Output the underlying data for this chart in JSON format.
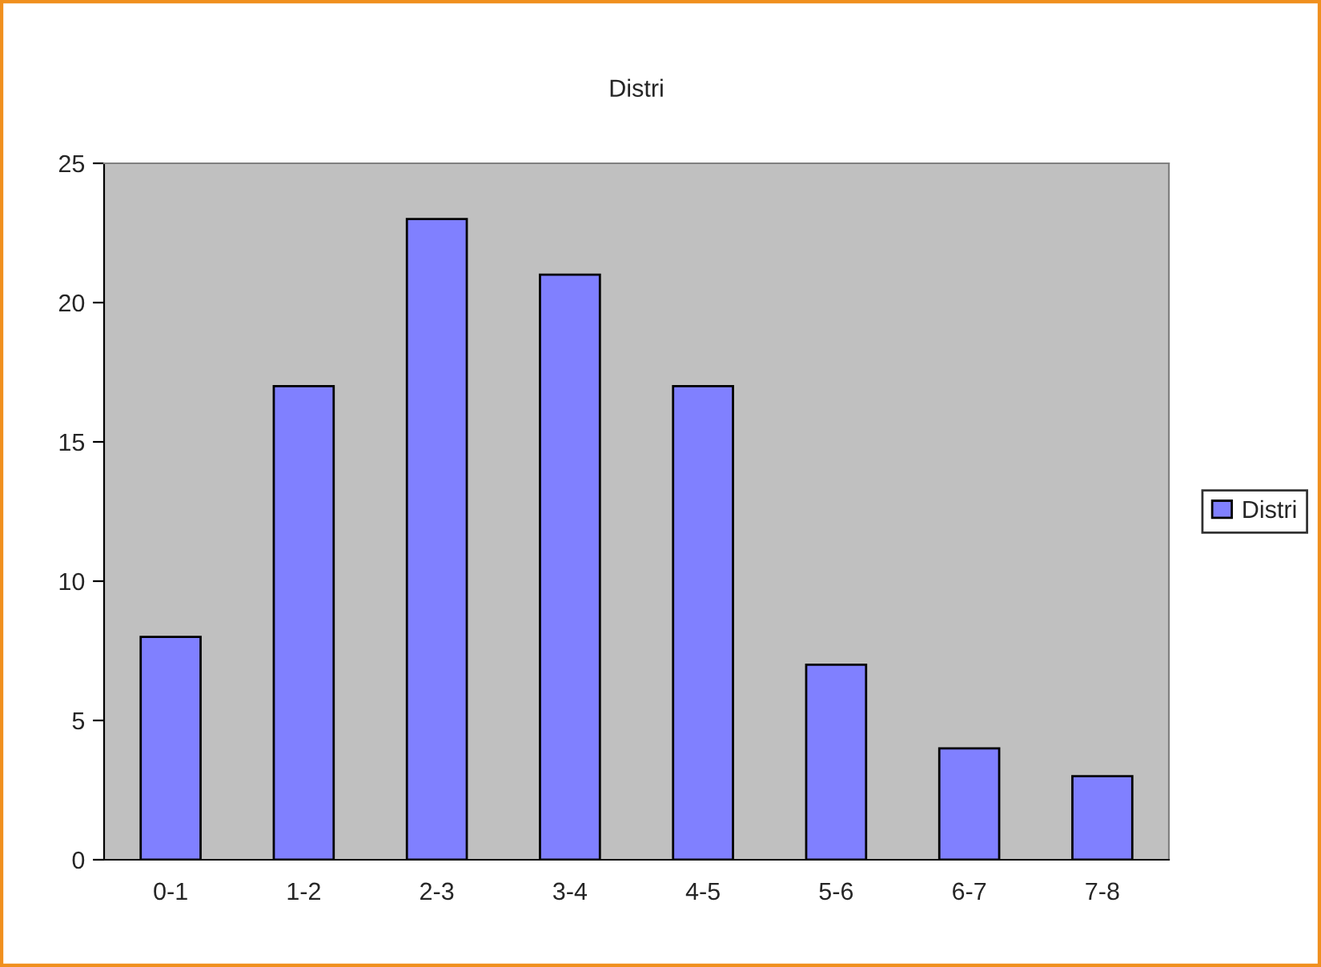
{
  "chart_data": {
    "type": "bar",
    "title": "Distri",
    "categories": [
      "0-1",
      "1-2",
      "2-3",
      "3-4",
      "4-5",
      "5-6",
      "6-7",
      "7-8"
    ],
    "series": [
      {
        "name": "Distri",
        "color": "#8080ff",
        "values": [
          8,
          17,
          23,
          21,
          17,
          7,
          4,
          3
        ]
      }
    ],
    "ylim": [
      0,
      25
    ],
    "yticks": [
      0,
      5,
      10,
      15,
      20,
      25
    ],
    "grid": false,
    "legend": "right"
  }
}
